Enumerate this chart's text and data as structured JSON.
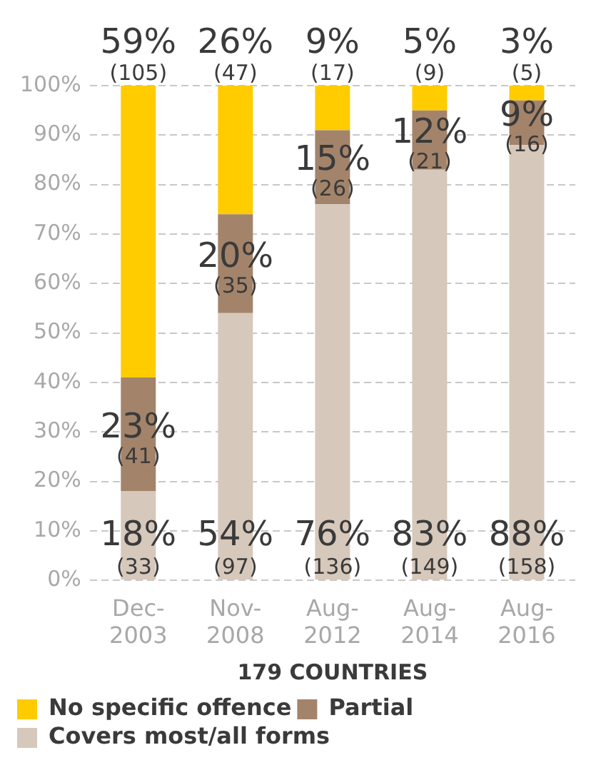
{
  "chart_data": {
    "type": "bar",
    "stacked": true,
    "xlabel": "179 COUNTRIES",
    "categories": [
      "Dec-2003",
      "Nov-2008",
      "Aug-2012",
      "Aug-2014",
      "Aug-2016"
    ],
    "series": [
      {
        "name": "Covers most/all forms",
        "color": "#d6c8bb",
        "values": [
          18,
          54,
          76,
          83,
          88
        ],
        "value_labels": [
          "18%\n(33)",
          "54%\n(97)",
          "76%\n(136)",
          "83%\n(149)",
          "88%\n(158)"
        ]
      },
      {
        "name": "Partial",
        "color": "#a3846a",
        "values": [
          23,
          20,
          15,
          12,
          9
        ],
        "value_labels": [
          "23%\n(41)",
          "20%\n(35)",
          "15%\n(26)",
          "12%\n(21)",
          "9%\n(16)"
        ]
      },
      {
        "name": "No specific offence",
        "color": "#ffcc00",
        "values": [
          59,
          26,
          9,
          5,
          3
        ],
        "value_labels": [
          "59%\n(105)",
          "26%\n(47)",
          "9%\n(17)",
          "5%\n(9)",
          "3%\n(5)"
        ]
      }
    ],
    "ylim": [
      0,
      100
    ],
    "yticks": [
      {
        "value": 0,
        "label": "0%"
      },
      {
        "value": 10,
        "label": "10%"
      },
      {
        "value": 20,
        "label": "20%"
      },
      {
        "value": 30,
        "label": "30%"
      },
      {
        "value": 40,
        "label": "40%"
      },
      {
        "value": 50,
        "label": "50%"
      },
      {
        "value": 60,
        "label": "60%"
      },
      {
        "value": 70,
        "label": "70%"
      },
      {
        "value": 80,
        "label": "80%"
      },
      {
        "value": 90,
        "label": "90%"
      },
      {
        "value": 100,
        "label": "100%"
      }
    ],
    "grid": "y",
    "legend": "bottom left"
  }
}
